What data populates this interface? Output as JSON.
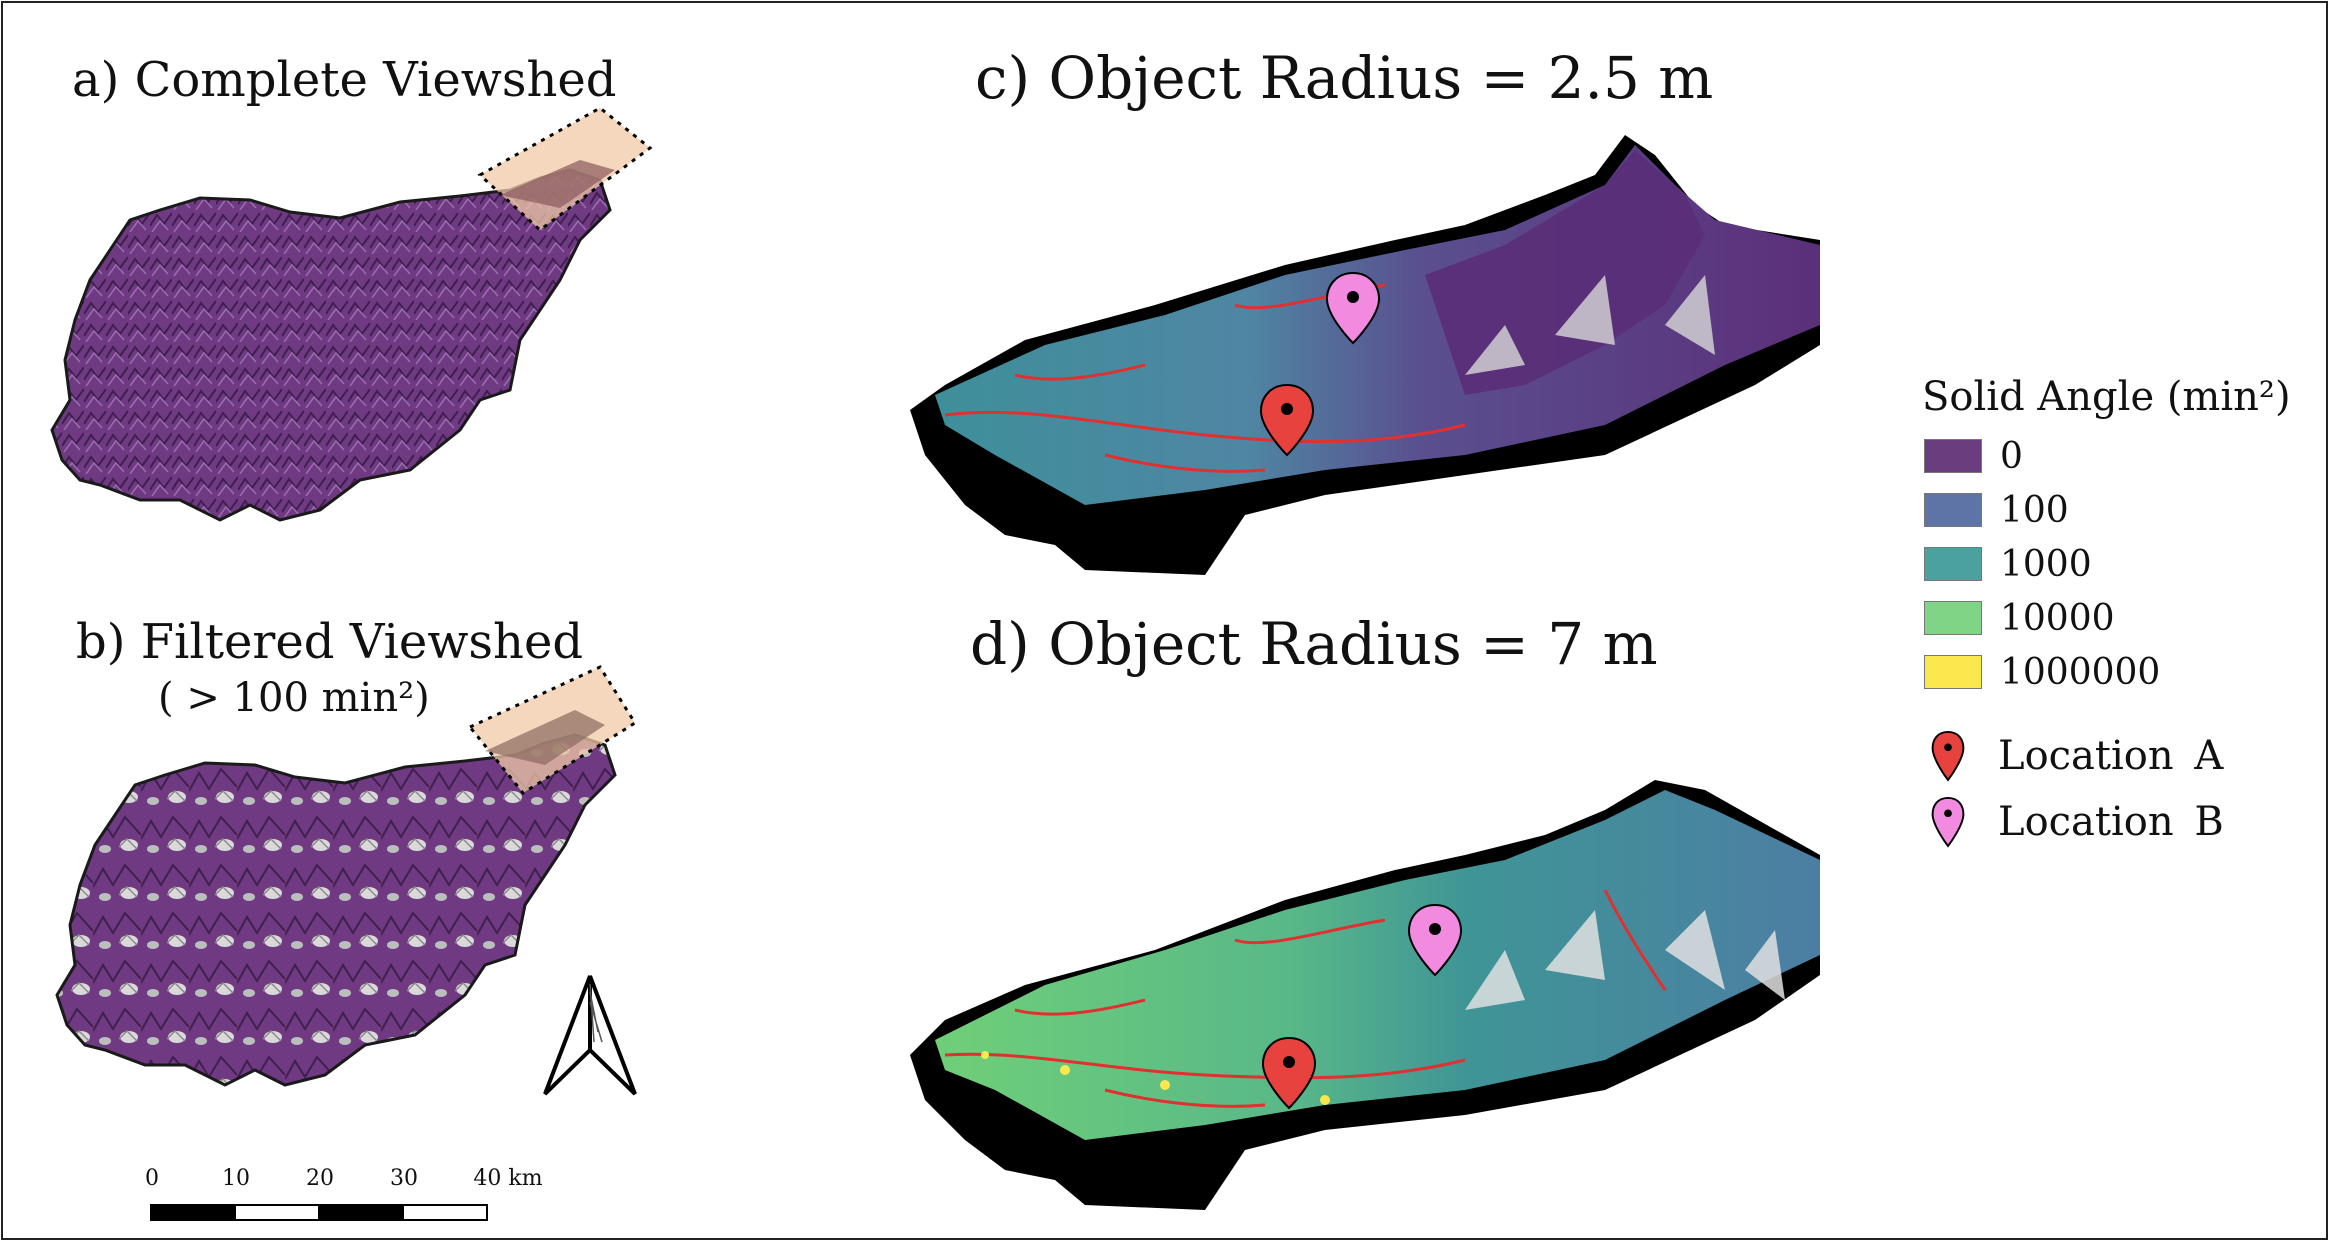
{
  "panels": {
    "a_title": "a) Complete Viewshed",
    "b_title": "b) Filtered Viewshed",
    "b_subtitle": "( > 100 min²)",
    "c_title": "c) Object Radius = 2.5 m",
    "d_title": "d) Object Radius = 7 m"
  },
  "legend": {
    "title": "Solid Angle (min²)",
    "classes": [
      {
        "label": "0",
        "color": "#6a3d7f"
      },
      {
        "label": "100",
        "color": "#5f74a6"
      },
      {
        "label": "1000",
        "color": "#4aa19e"
      },
      {
        "label": "10000",
        "color": "#7fd485"
      },
      {
        "label": "1000000",
        "color": "#fbe74e"
      }
    ],
    "locations": [
      {
        "label": "Location  A",
        "color": "#e8423e"
      },
      {
        "label": "Location  B",
        "color": "#f28be0"
      }
    ]
  },
  "scale_bar": {
    "ticks": [
      "0",
      "10",
      "20",
      "30",
      "40 km"
    ]
  },
  "colors": {
    "viewshed": "#6f3a82",
    "highlight_box": "#f0c9a6",
    "trail": "#e03030",
    "shadow": "#000000"
  }
}
